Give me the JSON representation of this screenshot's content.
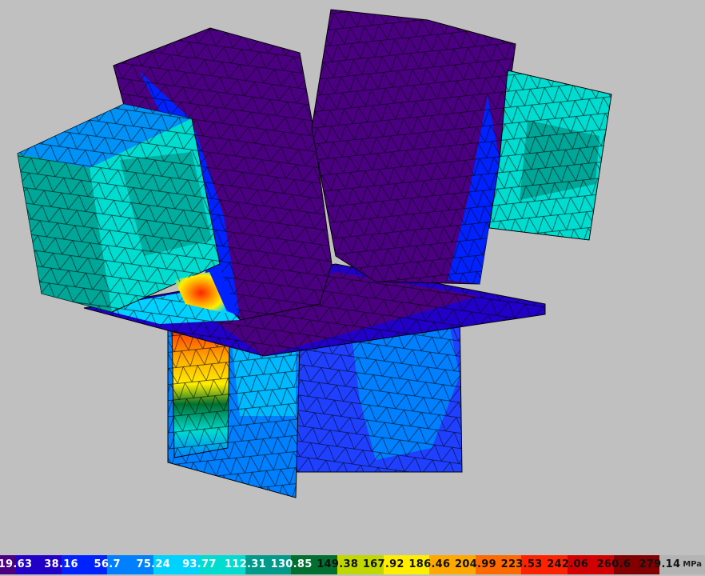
{
  "viewport": {
    "background": "#c0c0c0",
    "result_type": "stress contour on tetrahedral mesh"
  },
  "legend": {
    "unit": "MPa",
    "labels": [
      "19.63",
      "38.16",
      "56.7",
      "75.24",
      "93.77",
      "112.31",
      "130.85",
      "149.38",
      "167.92",
      "186.46",
      "204.99",
      "223.53",
      "242.06",
      "260.6",
      "279.14"
    ],
    "colors": [
      "#4b0082",
      "#2200c8",
      "#0022ff",
      "#0080ff",
      "#00d2ff",
      "#00dcd0",
      "#00998a",
      "#007030",
      "#c0d800",
      "#ffee00",
      "#ffa800",
      "#ff6a00",
      "#ff2200",
      "#d20000",
      "#820000",
      "#b4b4b4"
    ],
    "label_colors": [
      "#ffffff",
      "#ffffff",
      "#ffffff",
      "#ffffff",
      "#ffffff",
      "#ffffff",
      "#ffffff",
      "#111111",
      "#111111",
      "#111111",
      "#111111",
      "#111111",
      "#111111",
      "#111111",
      "#111111"
    ]
  }
}
